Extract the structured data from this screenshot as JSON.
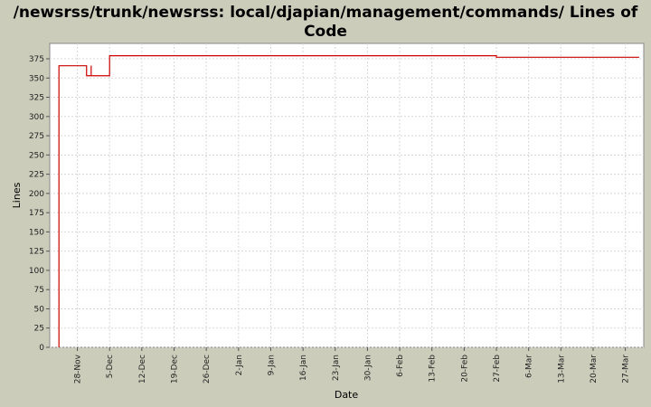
{
  "colors": {
    "background": "#ccccbb",
    "plot_background": "#ffffff",
    "gridline": "#d8d8d8",
    "series": "#cc0000"
  },
  "chart_data": {
    "type": "line",
    "title_lines": [
      "/newsrss/trunk/newsrss: local/djapian/management/commands/ Lines of",
      "Code"
    ],
    "xlabel": "Date",
    "ylabel": "Lines",
    "grid": true,
    "line_style": "step",
    "xlim": [
      "2008-11-22",
      "2009-03-31"
    ],
    "ylim": [
      0,
      395
    ],
    "yticks": [
      0,
      25,
      50,
      75,
      100,
      125,
      150,
      175,
      200,
      225,
      250,
      275,
      300,
      325,
      350,
      375
    ],
    "xticks": [
      {
        "date": "2008-11-28",
        "label": "28-Nov"
      },
      {
        "date": "2008-12-05",
        "label": "5-Dec"
      },
      {
        "date": "2008-12-12",
        "label": "12-Dec"
      },
      {
        "date": "2008-12-19",
        "label": "19-Dec"
      },
      {
        "date": "2008-12-26",
        "label": "26-Dec"
      },
      {
        "date": "2009-01-02",
        "label": "2-Jan"
      },
      {
        "date": "2009-01-09",
        "label": "9-Jan"
      },
      {
        "date": "2009-01-16",
        "label": "16-Jan"
      },
      {
        "date": "2009-01-23",
        "label": "23-Jan"
      },
      {
        "date": "2009-01-30",
        "label": "30-Jan"
      },
      {
        "date": "2009-02-06",
        "label": "6-Feb"
      },
      {
        "date": "2009-02-13",
        "label": "13-Feb"
      },
      {
        "date": "2009-02-20",
        "label": "20-Feb"
      },
      {
        "date": "2009-02-27",
        "label": "27-Feb"
      },
      {
        "date": "2009-03-06",
        "label": "6-Mar"
      },
      {
        "date": "2009-03-13",
        "label": "13-Mar"
      },
      {
        "date": "2009-03-20",
        "label": "20-Mar"
      },
      {
        "date": "2009-03-27",
        "label": "27-Mar"
      }
    ],
    "series": [
      {
        "points": [
          {
            "x": "2008-11-24",
            "y": 0
          },
          {
            "x": "2008-11-24",
            "y": 366
          },
          {
            "x": "2008-11-30",
            "y": 353
          },
          {
            "x": "2008-12-01",
            "y": 366
          },
          {
            "x": "2008-12-01",
            "y": 353
          },
          {
            "x": "2008-12-05",
            "y": 379
          },
          {
            "x": "2009-02-27",
            "y": 377
          },
          {
            "x": "2009-03-30",
            "y": 377
          }
        ]
      }
    ]
  }
}
